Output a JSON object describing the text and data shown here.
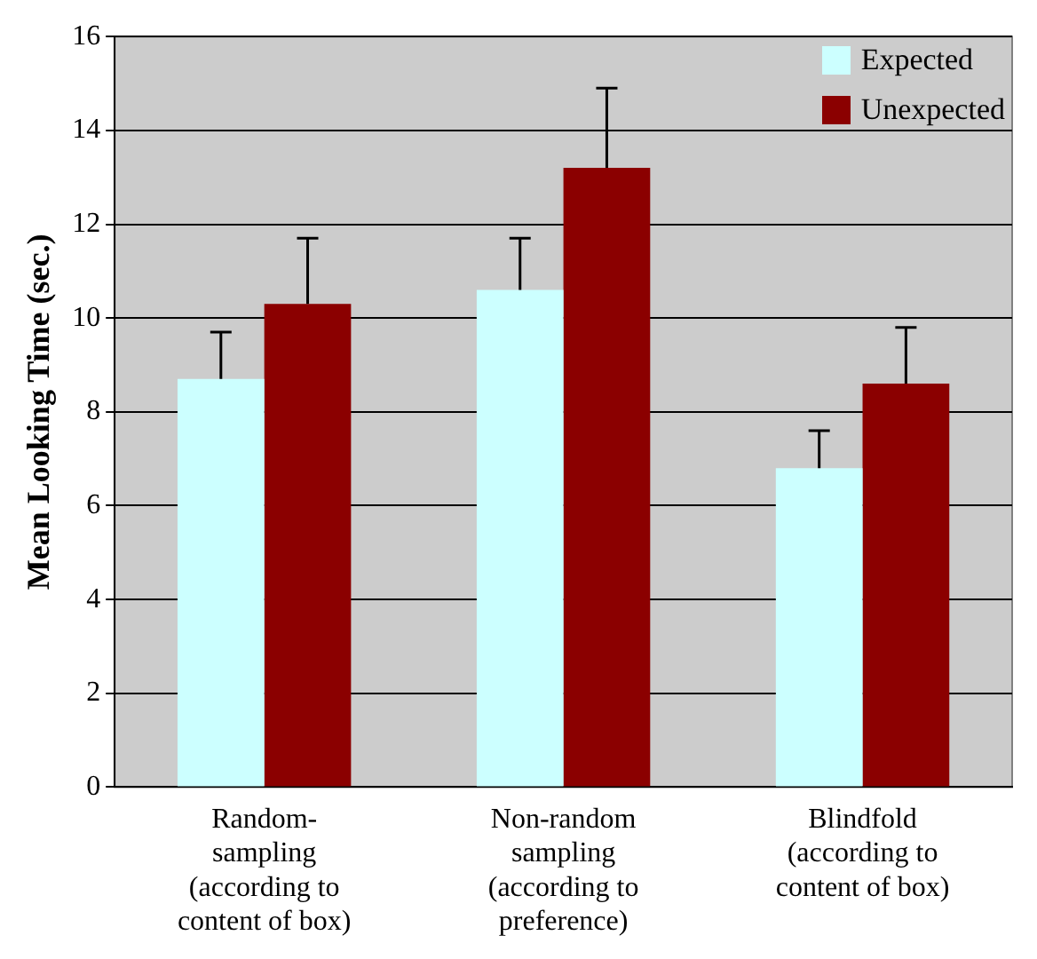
{
  "chart_data": {
    "type": "bar",
    "ylabel": "Mean Looking Time (sec.)",
    "categories": [
      "Random-\nsampling\n(according to\ncontent of box)",
      "Non-random\nsampling\n(according to\npreference)",
      "Blindfold\n(according to\ncontent of box)"
    ],
    "series": [
      {
        "name": "Expected",
        "color": "#ccffff",
        "values": [
          8.7,
          10.6,
          6.8
        ],
        "errors": [
          [
            8.7,
            9.7
          ],
          [
            10.6,
            11.7
          ],
          [
            6.8,
            7.6
          ]
        ]
      },
      {
        "name": "Unexpected",
        "color": "#8b0000",
        "values": [
          10.3,
          13.2,
          8.6
        ],
        "errors": [
          [
            10.3,
            11.7
          ],
          [
            13.2,
            14.9
          ],
          [
            8.6,
            9.8
          ]
        ]
      }
    ],
    "ylim": [
      0,
      16
    ],
    "yticks": [
      0,
      2,
      4,
      6,
      8,
      10,
      12,
      14,
      16
    ],
    "grid": "y",
    "legend": "top right"
  }
}
